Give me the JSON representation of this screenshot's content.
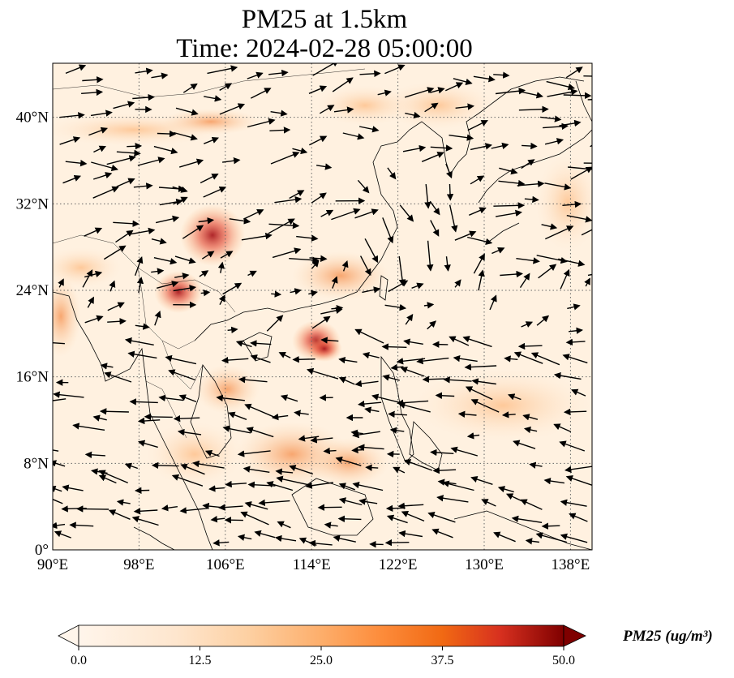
{
  "title": {
    "line1": "PM25 at 1.5km",
    "line2": "Time: 2024-02-28 05:00:00"
  },
  "map": {
    "extent": {
      "lon": [
        90,
        140
      ],
      "lat": [
        0,
        45
      ]
    },
    "lon_ticks": [
      {
        "value": 90,
        "label": "90°E"
      },
      {
        "value": 98,
        "label": "98°E"
      },
      {
        "value": 106,
        "label": "106°E"
      },
      {
        "value": 114,
        "label": "114°E"
      },
      {
        "value": 122,
        "label": "122°E"
      },
      {
        "value": 130,
        "label": "130°E"
      },
      {
        "value": 138,
        "label": "138°E"
      }
    ],
    "lat_ticks": [
      {
        "value": 0,
        "label": "0°"
      },
      {
        "value": 8,
        "label": "8°N"
      },
      {
        "value": 16,
        "label": "16°N"
      },
      {
        "value": 24,
        "label": "24°N"
      },
      {
        "value": 32,
        "label": "32°N"
      },
      {
        "value": 40,
        "label": "40°N"
      }
    ],
    "gridlines": true
  },
  "colorbar": {
    "label": "PM25 (ug/m³)",
    "ticks": [
      "0.0",
      "12.5",
      "25.0",
      "37.5",
      "50.0"
    ],
    "range": [
      0,
      50
    ],
    "colors": [
      "#fff5eb",
      "#fdd49e",
      "#fdae6b",
      "#f16913",
      "#d7301f",
      "#7f0000"
    ]
  },
  "colors": {
    "grid": "#666666",
    "coast": "#000000",
    "arrow": "#000000"
  }
}
